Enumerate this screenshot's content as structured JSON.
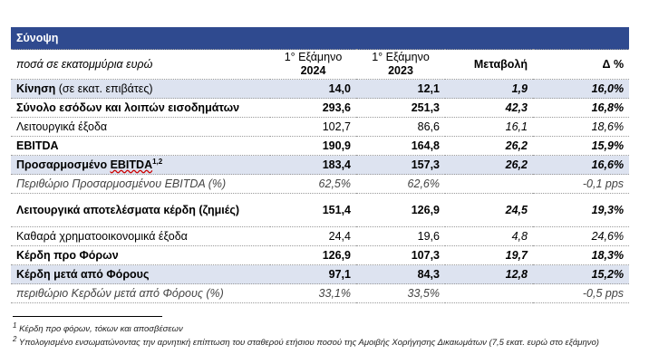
{
  "title": "Σύνοψη",
  "units_note": "ποσά σε εκατομμύρια ευρώ",
  "col_h1": [
    "1° Εξάμηνο",
    "2024"
  ],
  "col_h2": [
    "1° Εξάμηνο",
    "2023"
  ],
  "col_change": "Μεταβολή",
  "col_pct": "Δ %",
  "rows": [
    {
      "label": "Κίνηση",
      "label_suffix": "(σε εκατ. επιβάτες)",
      "v2024": "14,0",
      "v2023": "12,1",
      "change": "1,9",
      "pct": "16,0%"
    },
    {
      "label": "Σύνολο εσόδων και λοιπών εισοδημάτων",
      "v2024": "293,6",
      "v2023": "251,3",
      "change": "42,3",
      "pct": "16,8%"
    },
    {
      "label": "Λειτουργικά έξοδα",
      "v2024": "102,7",
      "v2023": "86,6",
      "change": "16,1",
      "pct": "18,6%"
    },
    {
      "label": "EBITDA",
      "v2024": "190,9",
      "v2023": "164,8",
      "change": "26,2",
      "pct": "15,9%"
    },
    {
      "label": "Προσαρμοσμένο",
      "label_red": "EBITDA",
      "label_sup": "1,2",
      "v2024": "183,4",
      "v2023": "157,3",
      "change": "26,2",
      "pct": "16,6%"
    },
    {
      "label": "Περιθώριο Προσαρμοσμένου EBITDA (%)",
      "v2024": "62,5%",
      "v2023": "62,6%",
      "change": "",
      "pct": "-0,1 pps"
    },
    {
      "label": "Λειτουργικά αποτελέσματα κέρδη (ζημιές)",
      "v2024": "151,4",
      "v2023": "126,9",
      "change": "24,5",
      "pct": "19,3%"
    },
    {
      "label": "Καθαρά χρηματοοικονομικά έξοδα",
      "v2024": "24,4",
      "v2023": "19,6",
      "change": "4,8",
      "pct": "24,6%"
    },
    {
      "label": "Κέρδη προ Φόρων",
      "v2024": "126,9",
      "v2023": "107,3",
      "change": "19,7",
      "pct": "18,3%"
    },
    {
      "label": "Κέρδη μετά από Φόρους",
      "v2024": "97,1",
      "v2023": "84,3",
      "change": "12,8",
      "pct": "15,2%"
    },
    {
      "label": "περιθώριο Κερδών μετά από Φόρους (%)",
      "v2024": "33,1%",
      "v2023": "33,5%",
      "change": "",
      "pct": "-0,5 pps"
    }
  ],
  "footnotes": {
    "fn1_mark": "1",
    "fn1": "Κέρδη προ φόρων, τόκων και αποσβέσεων",
    "fn2_mark": "2",
    "fn2": "Υπολογισμένο ενσωματώνοντας την αρνητική επίπτωση του σταθερού ετήσιου ποσού της Αμοιβής Χορήγησης Δικαιωμάτων (7,5 εκατ. ευρώ στο εξάμηνο)"
  }
}
